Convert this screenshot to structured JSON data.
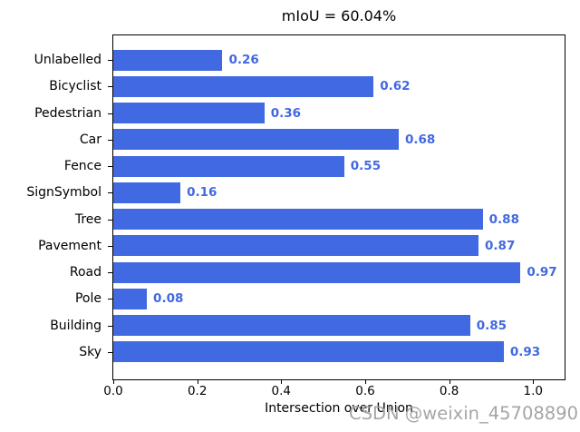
{
  "figure": {
    "title": "mIoU = 60.04%",
    "xlabel": "Intersection over Union",
    "watermark": "CSDN @weixin_45708890"
  },
  "chart_data": {
    "type": "bar",
    "orientation": "horizontal",
    "title": "mIoU = 60.04%",
    "xlabel": "Intersection over Union",
    "ylabel": "",
    "categories": [
      "Unlabelled",
      "Bicyclist",
      "Pedestrian",
      "Car",
      "Fence",
      "SignSymbol",
      "Tree",
      "Pavement",
      "Road",
      "Pole",
      "Building",
      "Sky"
    ],
    "values": [
      0.26,
      0.62,
      0.36,
      0.68,
      0.55,
      0.16,
      0.88,
      0.87,
      0.97,
      0.08,
      0.85,
      0.93
    ],
    "value_labels": [
      "0.26",
      "0.62",
      "0.36",
      "0.68",
      "0.55",
      "0.16",
      "0.88",
      "0.87",
      "0.97",
      "0.08",
      "0.85",
      "0.93"
    ],
    "xticks": [
      0.0,
      0.2,
      0.4,
      0.6,
      0.8,
      1.0
    ],
    "xtick_labels": [
      "0.0",
      "0.2",
      "0.4",
      "0.6",
      "0.8",
      "1.0"
    ],
    "xlim": [
      0,
      1.075
    ],
    "grid": false,
    "legend": null,
    "bar_color": "#4169e1",
    "value_label_color": "#4169e1"
  },
  "colors": {
    "background": "#ffffff",
    "spine": "#000000",
    "text": "#000000",
    "watermark": "#a5a5a5"
  }
}
